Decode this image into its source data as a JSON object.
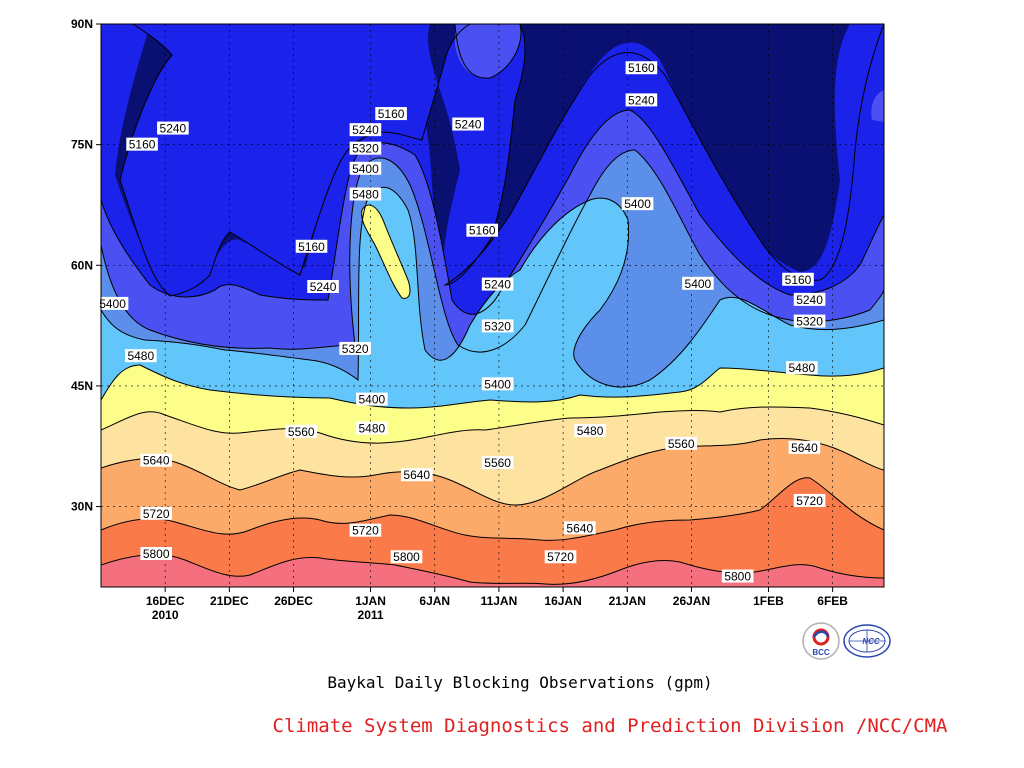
{
  "chart_data": {
    "type": "contour",
    "title": "Baykal Daily Blocking Observations (gpm)",
    "xlabel": "",
    "ylabel": "",
    "y_ticks": [
      "90N",
      "75N",
      "60N",
      "45N",
      "30N"
    ],
    "y_tick_values": [
      90,
      75,
      60,
      45,
      30
    ],
    "ylim": [
      20,
      90
    ],
    "x_ticks": [
      {
        "line1": "16DEC",
        "line2": "2010",
        "day": 5
      },
      {
        "line1": "21DEC",
        "line2": "",
        "day": 10
      },
      {
        "line1": "26DEC",
        "line2": "",
        "day": 15
      },
      {
        "line1": "1JAN",
        "line2": "2011",
        "day": 21
      },
      {
        "line1": "6JAN",
        "line2": "",
        "day": 26
      },
      {
        "line1": "11JAN",
        "line2": "",
        "day": 31
      },
      {
        "line1": "16JAN",
        "line2": "",
        "day": 36
      },
      {
        "line1": "21JAN",
        "line2": "",
        "day": 41
      },
      {
        "line1": "26JAN",
        "line2": "",
        "day": 46
      },
      {
        "line1": "1FEB",
        "line2": "",
        "day": 52
      },
      {
        "line1": "6FEB",
        "line2": "",
        "day": 57
      }
    ],
    "xlim": [
      0,
      61
    ],
    "grid": true,
    "levels": [
      5160,
      5240,
      5320,
      5400,
      5480,
      5560,
      5640,
      5720,
      5800
    ],
    "fill_colors": [
      "#0a0f72",
      "#1b22ea",
      "#4a50f2",
      "#5b8fea",
      "#62c6fb",
      "#fdfd8a",
      "#fde2a0",
      "#fbaa6a",
      "#fa7a4a",
      "#f5707e"
    ],
    "contour_labels": [
      {
        "value": "5240",
        "day": 5.6,
        "lat": 77
      },
      {
        "value": "5160",
        "day": 3.2,
        "lat": 75
      },
      {
        "value": "5160",
        "day": 16.4,
        "lat": 62.3
      },
      {
        "value": "5240",
        "day": 17.3,
        "lat": 57.3
      },
      {
        "value": "5160",
        "day": 22.6,
        "lat": 78.8
      },
      {
        "value": "5240",
        "day": 20.6,
        "lat": 76.8
      },
      {
        "value": "5320",
        "day": 20.6,
        "lat": 74.5
      },
      {
        "value": "5400",
        "day": 20.6,
        "lat": 72
      },
      {
        "value": "5480",
        "day": 20.6,
        "lat": 68.8
      },
      {
        "value": "5240",
        "day": 28.6,
        "lat": 77.5
      },
      {
        "value": "5160",
        "day": 29.7,
        "lat": 64.3
      },
      {
        "value": "5240",
        "day": 30.9,
        "lat": 57.6
      },
      {
        "value": "5320",
        "day": 30.9,
        "lat": 52.4
      },
      {
        "value": "5400",
        "day": 30.9,
        "lat": 45.2
      },
      {
        "value": "5320",
        "day": 19.8,
        "lat": 49.6
      },
      {
        "value": "5400",
        "day": 21.1,
        "lat": 43.3
      },
      {
        "value": "5480",
        "day": 21.1,
        "lat": 39.7
      },
      {
        "value": "5160",
        "day": 42.1,
        "lat": 84.5
      },
      {
        "value": "5240",
        "day": 42.1,
        "lat": 80.5
      },
      {
        "value": "5400",
        "day": 41.8,
        "lat": 67.6
      },
      {
        "value": "5400",
        "day": 46.5,
        "lat": 57.7
      },
      {
        "value": "5160",
        "day": 54.3,
        "lat": 58.2
      },
      {
        "value": "5240",
        "day": 55.2,
        "lat": 55.7
      },
      {
        "value": "5320",
        "day": 55.2,
        "lat": 53
      },
      {
        "value": "5480",
        "day": 54.6,
        "lat": 47.2
      },
      {
        "value": "5400",
        "day": 0.9,
        "lat": 55.2
      },
      {
        "value": "5480",
        "day": 3.1,
        "lat": 48.7
      },
      {
        "value": "5560",
        "day": 15.6,
        "lat": 39.3
      },
      {
        "value": "5480",
        "day": 38.1,
        "lat": 39.4
      },
      {
        "value": "5560",
        "day": 45.2,
        "lat": 37.8
      },
      {
        "value": "5640",
        "day": 54.8,
        "lat": 37.3
      },
      {
        "value": "5640",
        "day": 4.3,
        "lat": 35.7
      },
      {
        "value": "5640",
        "day": 24.6,
        "lat": 33.9
      },
      {
        "value": "5560",
        "day": 30.9,
        "lat": 35.4
      },
      {
        "value": "5720",
        "day": 55.2,
        "lat": 30.7
      },
      {
        "value": "5720",
        "day": 4.3,
        "lat": 29.1
      },
      {
        "value": "5640",
        "day": 37.3,
        "lat": 27.3
      },
      {
        "value": "5720",
        "day": 20.6,
        "lat": 27
      },
      {
        "value": "5720",
        "day": 35.8,
        "lat": 23.7
      },
      {
        "value": "5800",
        "day": 4.3,
        "lat": 24.1
      },
      {
        "value": "5800",
        "day": 23.8,
        "lat": 23.7
      },
      {
        "value": "5800",
        "day": 49.6,
        "lat": 21.3
      }
    ]
  },
  "caption": "Baykal Daily Blocking Observations (gpm)",
  "credit": "Climate System Diagnostics and Prediction Division /NCC/CMA",
  "credit_color": "#e02020",
  "logos": [
    {
      "name": "bcc-logo",
      "text": "BCC"
    },
    {
      "name": "ncc-logo",
      "text": "NCC"
    }
  ]
}
